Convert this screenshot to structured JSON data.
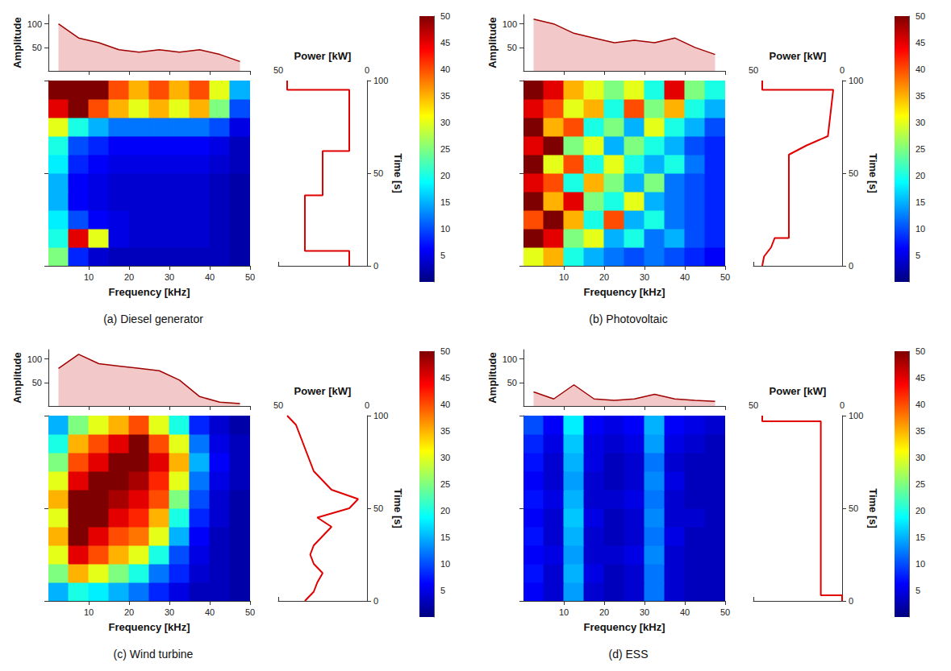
{
  "chart_data": [
    {
      "type": "spectrogram",
      "title": "(a) Diesel generator",
      "x_label": "Frequency [kHz]",
      "xlim": [
        0,
        50
      ],
      "xticks": [
        10,
        20,
        30,
        40,
        50
      ],
      "amplitude_label": "Amplitude",
      "amplitude_lim": [
        0,
        120
      ],
      "amplitude_ticks": [
        50,
        100
      ],
      "amplitude_profile": {
        "frequency": [
          2.5,
          7.5,
          12.5,
          17.5,
          22.5,
          27.5,
          32.5,
          37.5,
          42.5,
          47.5
        ],
        "values": [
          100,
          70,
          60,
          45,
          40,
          45,
          40,
          45,
          35,
          20
        ]
      },
      "time_label": "Time [s]",
      "time_lim": [
        0,
        100
      ],
      "time_ticks": [
        0,
        50,
        100
      ],
      "freq_edges": [
        0,
        5,
        10,
        15,
        20,
        25,
        30,
        35,
        40,
        45,
        50
      ],
      "time_edges": [
        0,
        10,
        20,
        30,
        40,
        50,
        60,
        70,
        80,
        90,
        100
      ],
      "cells": [
        [
          25,
          8,
          4,
          3,
          3,
          3,
          3,
          3,
          3,
          2
        ],
        [
          20,
          45,
          30,
          5,
          4,
          4,
          4,
          4,
          3,
          2
        ],
        [
          18,
          10,
          6,
          5,
          4,
          4,
          4,
          4,
          3,
          2
        ],
        [
          15,
          6,
          5,
          4,
          4,
          4,
          4,
          4,
          3,
          2
        ],
        [
          15,
          6,
          5,
          4,
          4,
          4,
          4,
          4,
          3,
          2
        ],
        [
          18,
          8,
          6,
          5,
          5,
          5,
          5,
          5,
          4,
          3
        ],
        [
          20,
          10,
          8,
          6,
          6,
          6,
          6,
          6,
          5,
          3
        ],
        [
          30,
          20,
          15,
          12,
          12,
          12,
          12,
          12,
          10,
          5
        ],
        [
          45,
          50,
          40,
          35,
          30,
          35,
          30,
          35,
          25,
          10
        ],
        [
          50,
          50,
          50,
          40,
          35,
          40,
          35,
          40,
          30,
          15
        ]
      ],
      "power_label": "Power [kW]",
      "power_lim": [
        0,
        50
      ],
      "power_ticks": [
        0,
        50
      ],
      "power": {
        "time": [
          0,
          8,
          8,
          38,
          38,
          62,
          62,
          95,
          95,
          100
        ],
        "values": [
          10,
          10,
          35,
          35,
          25,
          25,
          10,
          10,
          45,
          45
        ]
      },
      "colorbar_lim": [
        0,
        50
      ],
      "colorbar_ticks": [
        5,
        10,
        15,
        20,
        25,
        30,
        35,
        40,
        45,
        50
      ]
    },
    {
      "type": "spectrogram",
      "title": "(b) Photovoltaic",
      "x_label": "Frequency [kHz]",
      "xlim": [
        0,
        50
      ],
      "xticks": [
        10,
        20,
        30,
        40,
        50
      ],
      "amplitude_label": "Amplitude",
      "amplitude_lim": [
        0,
        120
      ],
      "amplitude_ticks": [
        50,
        100
      ],
      "amplitude_profile": {
        "frequency": [
          2.5,
          7.5,
          12.5,
          17.5,
          22.5,
          27.5,
          32.5,
          37.5,
          42.5,
          47.5
        ],
        "values": [
          110,
          100,
          80,
          70,
          60,
          65,
          60,
          70,
          50,
          35
        ]
      },
      "time_label": "Time [s]",
      "time_lim": [
        0,
        100
      ],
      "time_ticks": [
        0,
        50,
        100
      ],
      "freq_edges": [
        0,
        5,
        10,
        15,
        20,
        25,
        30,
        35,
        40,
        45,
        50
      ],
      "time_edges": [
        0,
        10,
        20,
        30,
        40,
        50,
        60,
        70,
        80,
        90,
        100
      ],
      "cells": [
        [
          30,
          35,
          20,
          15,
          12,
          10,
          12,
          10,
          8,
          6
        ],
        [
          50,
          45,
          25,
          30,
          15,
          20,
          12,
          15,
          10,
          8
        ],
        [
          40,
          50,
          35,
          20,
          40,
          15,
          20,
          12,
          10,
          8
        ],
        [
          50,
          35,
          45,
          25,
          20,
          30,
          15,
          12,
          10,
          8
        ],
        [
          45,
          40,
          20,
          35,
          25,
          15,
          25,
          12,
          10,
          8
        ],
        [
          50,
          30,
          40,
          20,
          30,
          20,
          15,
          20,
          12,
          8
        ],
        [
          45,
          50,
          25,
          30,
          15,
          25,
          20,
          15,
          10,
          8
        ],
        [
          50,
          35,
          40,
          20,
          25,
          15,
          30,
          20,
          15,
          10
        ],
        [
          45,
          40,
          30,
          35,
          20,
          40,
          25,
          35,
          20,
          15
        ],
        [
          50,
          45,
          35,
          30,
          25,
          30,
          20,
          45,
          25,
          20
        ]
      ],
      "power_label": "Power [kW]",
      "power_lim": [
        0,
        50
      ],
      "power_ticks": [
        0,
        50
      ],
      "power": {
        "time": [
          0,
          5,
          10,
          15,
          15,
          60,
          65,
          70,
          95,
          95,
          100
        ],
        "values": [
          45,
          44,
          40,
          38,
          30,
          30,
          20,
          8,
          5,
          45,
          45
        ]
      },
      "colorbar_lim": [
        0,
        50
      ],
      "colorbar_ticks": [
        5,
        10,
        15,
        20,
        25,
        30,
        35,
        40,
        45,
        50
      ]
    },
    {
      "type": "spectrogram",
      "title": "(c) Wind turbine",
      "x_label": "Frequency [kHz]",
      "xlim": [
        0,
        50
      ],
      "xticks": [
        10,
        20,
        30,
        40,
        50
      ],
      "amplitude_label": "Amplitude",
      "amplitude_lim": [
        0,
        120
      ],
      "amplitude_ticks": [
        50,
        100
      ],
      "amplitude_profile": {
        "frequency": [
          2.5,
          7.5,
          12.5,
          17.5,
          22.5,
          27.5,
          32.5,
          37.5,
          42.5,
          47.5
        ],
        "values": [
          80,
          110,
          90,
          85,
          80,
          75,
          55,
          20,
          8,
          5
        ]
      },
      "time_label": "Time [s]",
      "time_lim": [
        0,
        100
      ],
      "time_ticks": [
        0,
        50,
        100
      ],
      "freq_edges": [
        0,
        5,
        10,
        15,
        20,
        25,
        30,
        35,
        40,
        45,
        50
      ],
      "time_edges": [
        0,
        10,
        20,
        30,
        40,
        50,
        60,
        70,
        80,
        90,
        100
      ],
      "cells": [
        [
          15,
          20,
          18,
          15,
          12,
          8,
          5,
          3,
          3,
          2
        ],
        [
          25,
          35,
          30,
          25,
          20,
          12,
          8,
          4,
          3,
          2
        ],
        [
          30,
          45,
          40,
          35,
          30,
          20,
          10,
          5,
          3,
          2
        ],
        [
          35,
          50,
          45,
          40,
          38,
          30,
          15,
          6,
          3,
          2
        ],
        [
          30,
          50,
          50,
          45,
          42,
          35,
          20,
          8,
          4,
          2
        ],
        [
          35,
          50,
          50,
          48,
          45,
          40,
          25,
          10,
          4,
          2
        ],
        [
          30,
          45,
          50,
          50,
          48,
          42,
          30,
          12,
          5,
          3
        ],
        [
          25,
          40,
          45,
          50,
          50,
          45,
          35,
          15,
          6,
          3
        ],
        [
          20,
          35,
          40,
          45,
          50,
          40,
          30,
          12,
          5,
          3
        ],
        [
          15,
          25,
          30,
          35,
          40,
          30,
          20,
          8,
          4,
          2
        ]
      ],
      "power_label": "Power [kW]",
      "power_lim": [
        0,
        50
      ],
      "power_ticks": [
        0,
        50
      ],
      "power": {
        "time": [
          0,
          5,
          10,
          15,
          20,
          25,
          30,
          35,
          40,
          45,
          50,
          55,
          60,
          65,
          70,
          75,
          80,
          85,
          90,
          95,
          100
        ],
        "values": [
          35,
          30,
          28,
          25,
          30,
          32,
          30,
          25,
          20,
          28,
          10,
          5,
          20,
          25,
          30,
          32,
          34,
          36,
          38,
          40,
          45
        ]
      },
      "colorbar_lim": [
        0,
        50
      ],
      "colorbar_ticks": [
        5,
        10,
        15,
        20,
        25,
        30,
        35,
        40,
        45,
        50
      ]
    },
    {
      "type": "spectrogram",
      "title": "(d) ESS",
      "x_label": "Frequency [kHz]",
      "xlim": [
        0,
        50
      ],
      "xticks": [
        10,
        20,
        30,
        40,
        50
      ],
      "amplitude_label": "Amplitude",
      "amplitude_lim": [
        0,
        120
      ],
      "amplitude_ticks": [
        50,
        100
      ],
      "amplitude_profile": {
        "frequency": [
          2.5,
          7.5,
          12.5,
          17.5,
          22.5,
          27.5,
          32.5,
          37.5,
          42.5,
          47.5
        ],
        "values": [
          30,
          15,
          45,
          15,
          12,
          15,
          25,
          15,
          12,
          10
        ]
      },
      "time_label": "Time [s]",
      "time_lim": [
        0,
        100
      ],
      "time_ticks": [
        0,
        50,
        100
      ],
      "freq_edges": [
        0,
        5,
        10,
        15,
        20,
        25,
        30,
        35,
        40,
        45,
        50
      ],
      "time_edges": [
        0,
        10,
        20,
        30,
        40,
        50,
        60,
        70,
        80,
        90,
        100
      ],
      "cells": [
        [
          6,
          4,
          14,
          4,
          3,
          4,
          12,
          4,
          3,
          3
        ],
        [
          7,
          4,
          15,
          5,
          3,
          4,
          12,
          4,
          3,
          3
        ],
        [
          6,
          5,
          14,
          4,
          4,
          5,
          13,
          4,
          3,
          3
        ],
        [
          7,
          4,
          15,
          4,
          3,
          4,
          12,
          5,
          3,
          3
        ],
        [
          6,
          4,
          16,
          5,
          3,
          4,
          13,
          4,
          4,
          3
        ],
        [
          7,
          5,
          15,
          4,
          4,
          5,
          12,
          4,
          3,
          3
        ],
        [
          6,
          4,
          14,
          4,
          3,
          4,
          13,
          5,
          3,
          3
        ],
        [
          7,
          4,
          15,
          5,
          3,
          4,
          12,
          4,
          3,
          3
        ],
        [
          8,
          5,
          16,
          5,
          4,
          5,
          14,
          5,
          4,
          3
        ],
        [
          10,
          6,
          18,
          6,
          5,
          6,
          15,
          6,
          5,
          4
        ]
      ],
      "power_label": "Power [kW]",
      "power_lim": [
        0,
        50
      ],
      "power_ticks": [
        0,
        50
      ],
      "power": {
        "time": [
          0,
          3,
          3,
          97,
          97,
          100
        ],
        "values": [
          0,
          0,
          12,
          12,
          45,
          45
        ]
      },
      "colorbar_lim": [
        0,
        50
      ],
      "colorbar_ticks": [
        5,
        10,
        15,
        20,
        25,
        30,
        35,
        40,
        45,
        50
      ]
    }
  ]
}
